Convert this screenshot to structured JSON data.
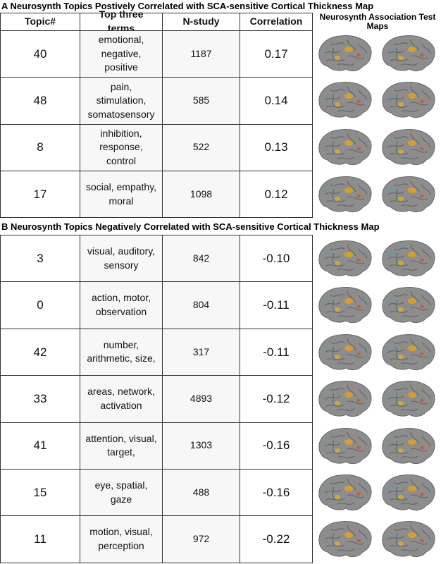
{
  "panel_a": {
    "title": "A Neurosynth Topics Postively Correlated with SCA-sensitive Cortical Thickness Map",
    "header": [
      "Topic#",
      "Top three terms",
      "N-study",
      "Correlation"
    ],
    "maps_header": "Neurosynth Association Test Maps",
    "rows": [
      [
        "40",
        "emotional, negative, positive",
        "1187",
        "0.17"
      ],
      [
        "48",
        "pain, stimulation, somatosensory",
        "585",
        "0.14"
      ],
      [
        "8",
        "inhibition, response, control",
        "522",
        "0.13"
      ],
      [
        "17",
        "social, empathy, moral",
        "1098",
        "0.12"
      ]
    ]
  },
  "panel_b": {
    "title": "B Neurosynth Topics Negatively Correlated with SCA-sensitive Cortical Thickness Map",
    "rows": [
      [
        "3",
        "visual, auditory, sensory",
        "842",
        "-0.10"
      ],
      [
        "0",
        "action, motor, observation",
        "804",
        "-0.11"
      ],
      [
        "42",
        "number, arithmetic, size,",
        "317",
        "-0.11"
      ],
      [
        "33",
        "areas, network, activation",
        "4893",
        "-0.12"
      ],
      [
        "41",
        "attention, visual, target,",
        "1303",
        "-0.16"
      ],
      [
        "15",
        "eye, spatial, gaze",
        "488",
        "-0.16"
      ],
      [
        "11",
        "motion, visual, perception",
        "972",
        "-0.22"
      ]
    ]
  }
}
